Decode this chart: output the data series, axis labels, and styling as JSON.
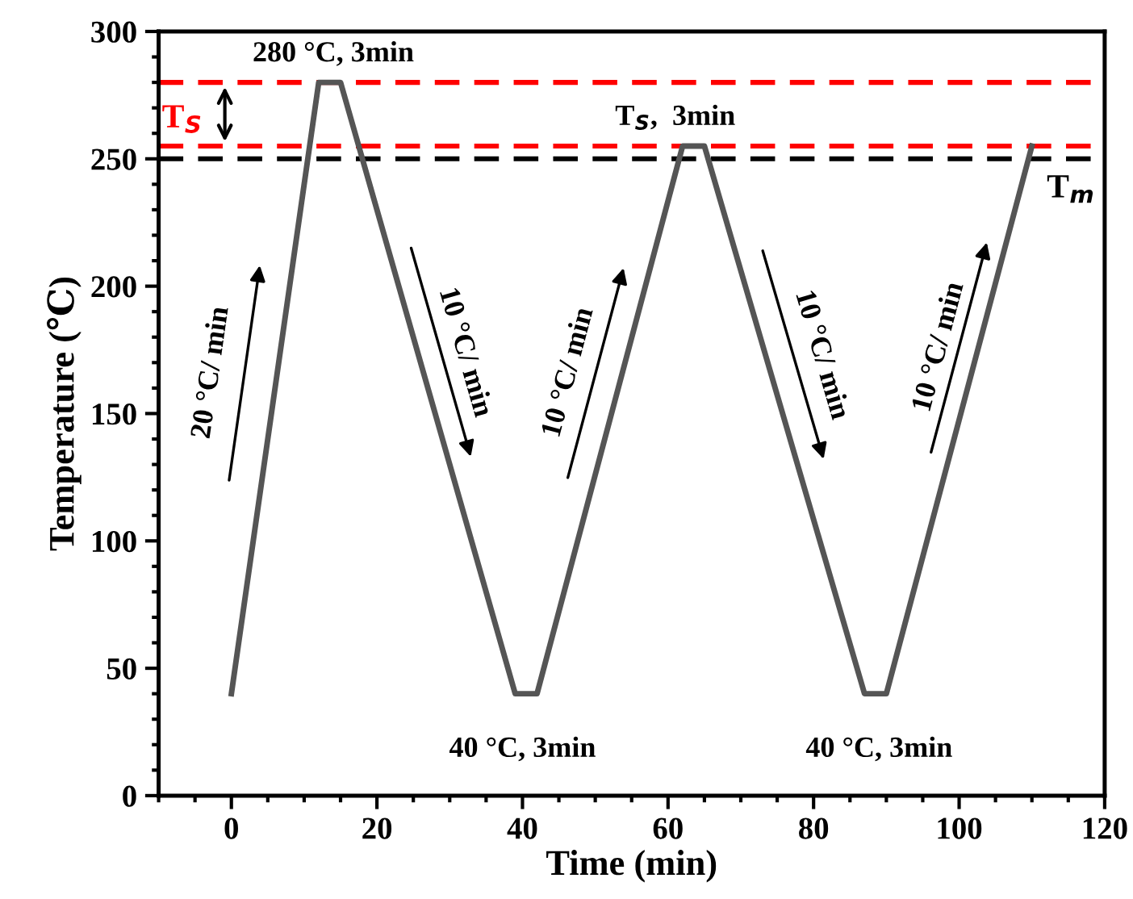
{
  "chart_data": {
    "type": "line",
    "xlabel": "Time (min)",
    "ylabel": "Temperature (℃)",
    "series": [
      {
        "color": "#555555",
        "x": [
          0,
          12,
          15,
          39,
          42,
          62,
          65,
          87,
          90,
          110
        ],
        "values": [
          40,
          280,
          280,
          40,
          40,
          255,
          255,
          40,
          40,
          255
        ]
      }
    ],
    "xlim": [
      -10,
      120
    ],
    "xticks": [
      0,
      20,
      40,
      60,
      80,
      100,
      120
    ],
    "ylim": [
      0,
      300
    ],
    "yticks": [
      0,
      50,
      100,
      150,
      200,
      250,
      300
    ],
    "ref_lines": [
      {
        "axis": "y",
        "value": 280,
        "color": "#ff0000",
        "line_style": "dashed"
      },
      {
        "axis": "y",
        "value": 255,
        "color": "#ff0000",
        "line_style": "dashed",
        "label": "T$_{S}$"
      },
      {
        "axis": "y",
        "value": 250,
        "color": "#000000",
        "line_style": "dashed",
        "label": "T$_{m}$"
      }
    ],
    "annotations": [
      "280 °C, 3min",
      "T$_{S}$,  3min",
      "40 °C, 3min",
      "40 °C, 3min",
      "20 °C/ min",
      "10 °C/ min",
      "10 °C/ min",
      "10 °C/ min",
      "10 °C/ min"
    ],
    "grid": false,
    "legend": false,
    "marker": "none",
    "line_style": "solid"
  }
}
